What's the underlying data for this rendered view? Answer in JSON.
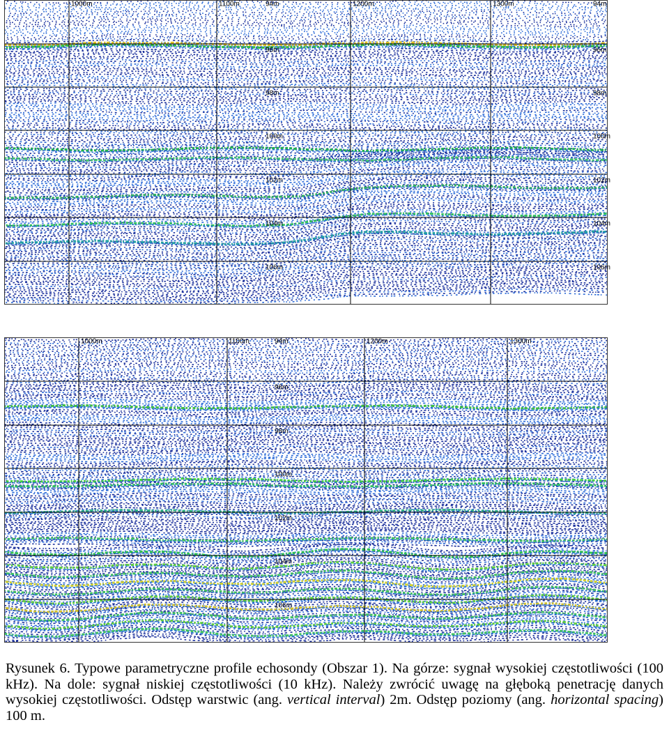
{
  "panels": [
    {
      "distance_labels": [
        "1000m",
        "1100m",
        "1200m",
        "1300m"
      ],
      "depth_labels": [
        "94m",
        "96m",
        "98m",
        "100m",
        "102m",
        "104m",
        "106m"
      ]
    },
    {
      "distance_labels": [
        "1000m",
        "1100m",
        "1200m",
        "1300m"
      ],
      "depth_labels": [
        "94m",
        "96m",
        "98m",
        "100m",
        "102m",
        "104m",
        "106m"
      ]
    }
  ],
  "caption": {
    "text1": "Rysunek 6. Typowe parametryczne profile echosondy (Obszar 1). Na górze: sygnał wysokiej częstotliwości (100 kHz). Na dole: sygnał niskiej częstotliwości (10 kHz). Należy zwrócić uwagę na głęboką penetrację danych wysokiej częstotliwości. Odstęp warstwic (ang. ",
    "italic1": "vertical interval",
    "text2": ") 2m. Odstęp poziomy (ang. ",
    "italic2": "horizontal spacing",
    "text3": ") 100 m."
  }
}
